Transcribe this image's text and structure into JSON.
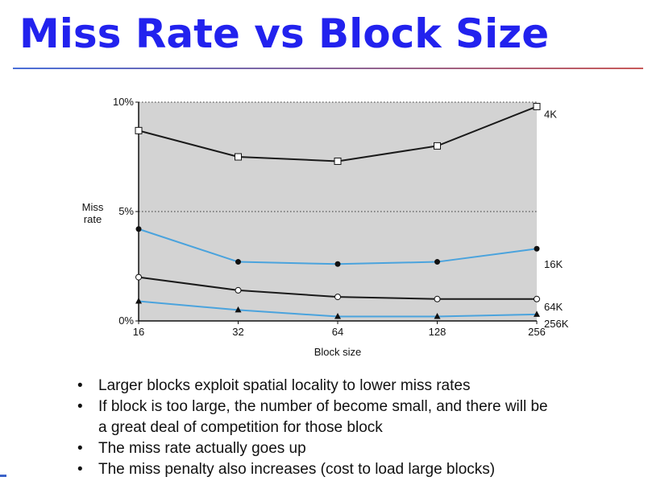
{
  "title": "Miss Rate vs Block Size",
  "bullets": [
    {
      "lines": [
        "Larger blocks exploit spatial locality to lower miss rates"
      ]
    },
    {
      "lines": [
        "If block is too large, the number of become small, and there will be",
        "a great deal of competition for those block"
      ]
    },
    {
      "lines": [
        "The miss rate actually goes up"
      ]
    },
    {
      "lines": [
        "The miss penalty also increases (cost to load large blocks)"
      ]
    }
  ],
  "colors": {
    "title": "#2222ee",
    "plot_bg": "#d3d3d3",
    "black_series": "#1a1a1a",
    "blue_series": "#4aa3dd"
  },
  "chart_data": {
    "type": "line",
    "x": [
      16,
      32,
      64,
      128,
      256
    ],
    "x_tick_labels": [
      "16",
      "32",
      "64",
      "128",
      "256"
    ],
    "xscale": "log2",
    "xlabel": "Block size",
    "ylabel": "Miss\nrate",
    "ylim": [
      0,
      10
    ],
    "y_ticks": [
      {
        "value": 0,
        "label": "0%"
      },
      {
        "value": 5,
        "label": "5%"
      },
      {
        "value": 10,
        "label": "10%"
      }
    ],
    "gridlines": "dotted at 5% and 10%",
    "series": [
      {
        "name": "4K",
        "marker": "open-square",
        "color": "black",
        "values": [
          8.7,
          7.5,
          7.3,
          8.0,
          9.8
        ]
      },
      {
        "name": "16K",
        "marker": "filled-circle",
        "color": "blue",
        "values": [
          4.2,
          2.7,
          2.6,
          2.7,
          3.3
        ]
      },
      {
        "name": "64K",
        "marker": "open-circle",
        "color": "black",
        "values": [
          2.0,
          1.4,
          1.1,
          1.0,
          1.0
        ]
      },
      {
        "name": "256K",
        "marker": "filled-triangle",
        "color": "blue",
        "values": [
          0.9,
          0.5,
          0.2,
          0.2,
          0.3
        ]
      }
    ]
  }
}
